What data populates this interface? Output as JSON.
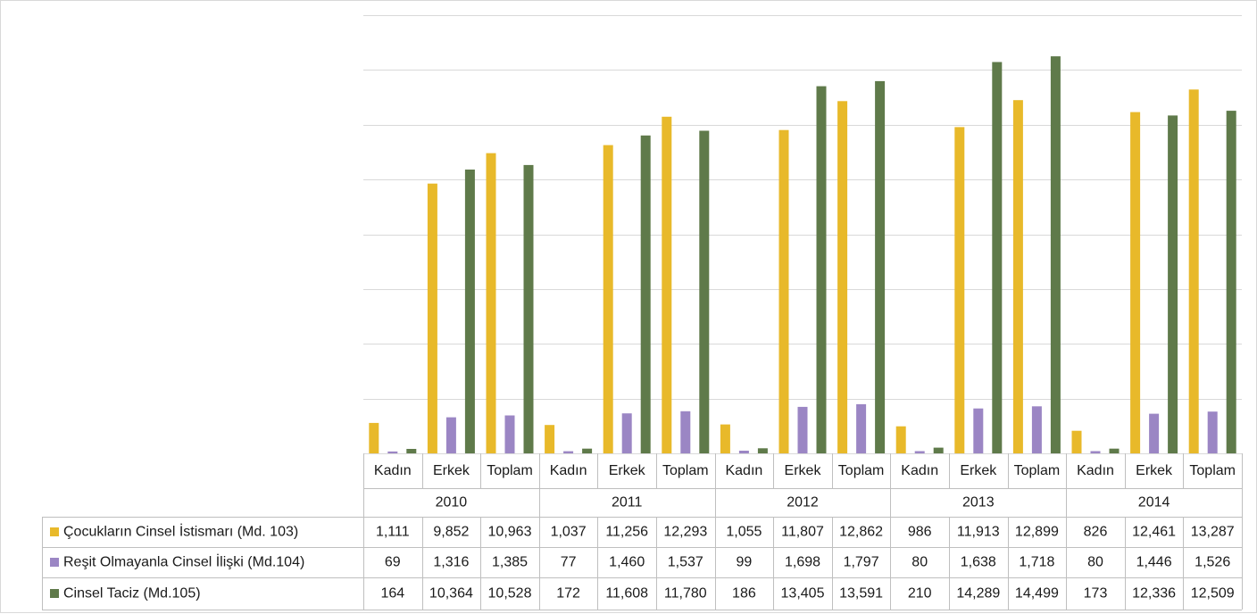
{
  "chart_data": {
    "type": "bar",
    "ylim": [
      0,
      16000
    ],
    "y_gridline_step": 2000,
    "grid": true,
    "y_tick_labels_shown": false,
    "legend_placement": "data-table-left",
    "groups": [
      "2010",
      "2011",
      "2012",
      "2013",
      "2014"
    ],
    "subcategories": [
      "Kadın",
      "Erkek",
      "Toplam"
    ],
    "series": [
      {
        "name": "Çocukların Cinsel İstismarı (Md. 103)",
        "color": "#e8b92a",
        "values": [
          1111,
          9852,
          10963,
          1037,
          11256,
          12293,
          1055,
          11807,
          12862,
          986,
          11913,
          12899,
          826,
          12461,
          13287
        ],
        "labels": [
          "1,111",
          "9,852",
          "10,963",
          "1,037",
          "11,256",
          "12,293",
          "1,055",
          "11,807",
          "12,862",
          "986",
          "11,913",
          "12,899",
          "826",
          "12,461",
          "13,287"
        ]
      },
      {
        "name": "Reşit Olmayanla Cinsel İlişki (Md.104)",
        "color": "#9b86c4",
        "values": [
          69,
          1316,
          1385,
          77,
          1460,
          1537,
          99,
          1698,
          1797,
          80,
          1638,
          1718,
          80,
          1446,
          1526
        ],
        "labels": [
          "69",
          "1,316",
          "1,385",
          "77",
          "1,460",
          "1,537",
          "99",
          "1,698",
          "1,797",
          "80",
          "1,638",
          "1,718",
          "80",
          "1,446",
          "1,526"
        ]
      },
      {
        "name": "Cinsel Taciz (Md.105)",
        "color": "#5f7a4a",
        "values": [
          164,
          10364,
          10528,
          172,
          11608,
          11780,
          186,
          13405,
          13591,
          210,
          14289,
          14499,
          173,
          12336,
          12509
        ],
        "labels": [
          "164",
          "10,364",
          "10,528",
          "172",
          "11,608",
          "11,780",
          "186",
          "13,405",
          "13,591",
          "210",
          "14,289",
          "14,499",
          "173",
          "12,336",
          "12,509"
        ]
      }
    ]
  },
  "colors": {
    "gridline": "#d9d9d9",
    "table_border": "#bfbfbf",
    "text": "#1a1a1a"
  }
}
